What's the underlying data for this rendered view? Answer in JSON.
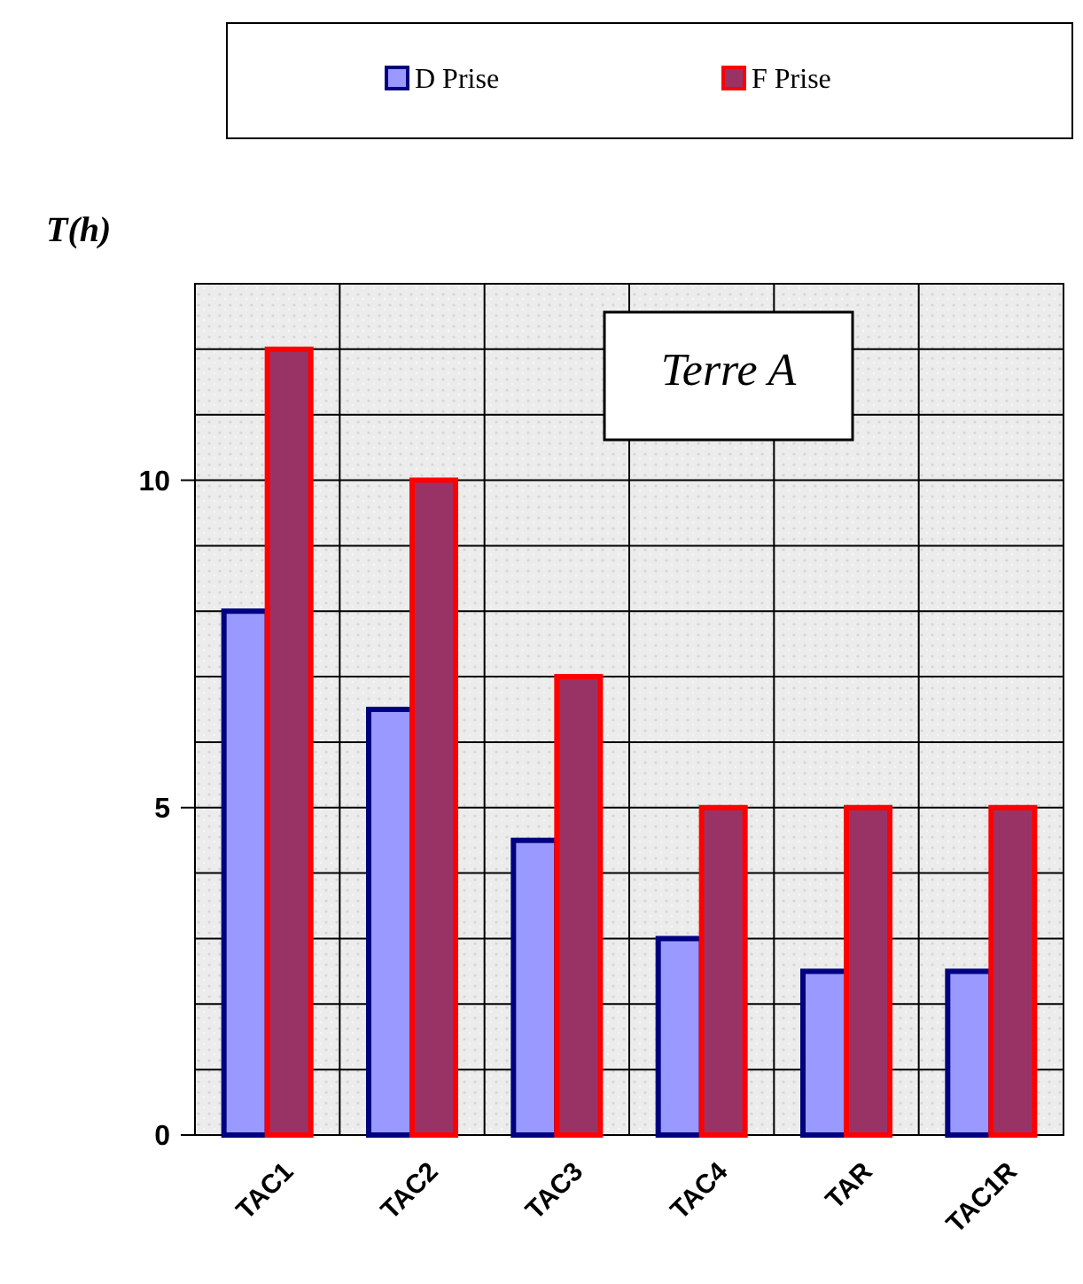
{
  "chart_data": {
    "type": "bar",
    "ylabel": "T(h)",
    "categories": [
      "TAC1",
      "TAC2",
      "TAC3",
      "TAC4",
      "TAR",
      "TAC1R"
    ],
    "series": [
      {
        "name": "D Prise",
        "color": "#9999ff",
        "values": [
          8,
          6.5,
          4.5,
          3,
          2.5,
          2.5
        ]
      },
      {
        "name": "F Prise",
        "color": "#993366",
        "values": [
          12,
          10,
          7,
          5,
          5,
          5
        ]
      }
    ],
    "ylim": [
      0,
      13
    ],
    "yticks": [
      0,
      {
        "value": 1,
        "label": null
      },
      {
        "value": 2,
        "label": null
      },
      {
        "value": 3,
        "label": null
      },
      {
        "value": 4,
        "label": null
      },
      5,
      {
        "value": 6,
        "label": null
      },
      {
        "value": 7,
        "label": null
      },
      {
        "value": 8,
        "label": null
      },
      {
        "value": 9,
        "label": null
      },
      10,
      {
        "value": 11,
        "label": null
      },
      {
        "value": 12,
        "label": null
      },
      {
        "value": 13,
        "label": null
      }
    ],
    "grid": true,
    "legend": "top",
    "annotations": [
      "Terre A"
    ]
  }
}
